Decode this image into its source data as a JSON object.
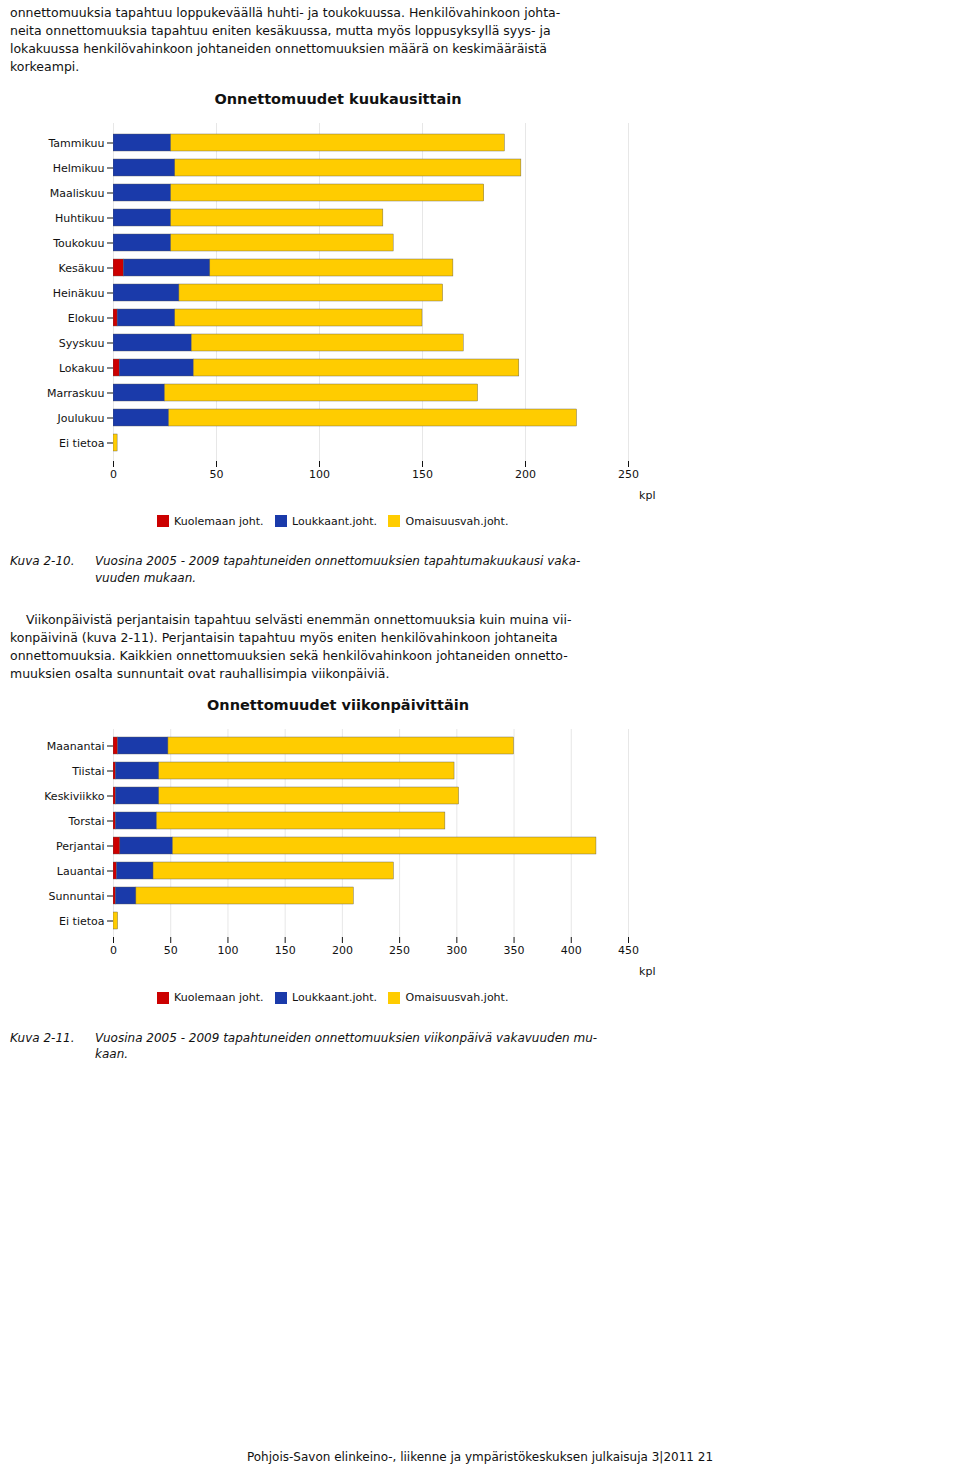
{
  "intro_text": "onnettomuuksia tapahtuu loppukeväällä huhti- ja toukokuussa. Henkilövahinkoon johta-\nneita onnettomuuksia tapahtuu eniten kesäkuussa, mutta myös loppusyksyllä syys- ja\nlokakuussa henkilövahinkoon johtaneiden onnettomuuksien määrä on keskimääräistä\nkorkeampi.",
  "middle_text": "    Viikonpäivistä perjantaisin tapahtuu selvästi enemmän onnettomuuksia kuin muina vii-\nkonpäivinä (kuva 2-11). Perjantaisin tapahtuu myös eniten henkilövahinkoon johtaneita\nonnettomuuksia. Kaikkien onnettomuuksien sekä henkilövahinkoon johtaneiden onnetto-\nmuuksien osalta sunnuntait ovat rauhallisimpia viikonpäiviä.",
  "footer": "Pohjois-Savon elinkeino-, liikenne ja ympäristökeskuksen julkaisuja 3|2011    21",
  "chart_data": [
    {
      "type": "bar",
      "orientation": "horizontal",
      "stacked": true,
      "grid": true,
      "title": "Onnettomuudet kuukausittain",
      "categories": [
        "Tammikuu",
        "Helmikuu",
        "Maaliskuu",
        "Huhtikuu",
        "Toukokuu",
        "Kesäkuu",
        "Heinäkuu",
        "Elokuu",
        "Syyskuu",
        "Lokakuu",
        "Marraskuu",
        "Joulukuu",
        "Ei tietoa"
      ],
      "series": [
        {
          "name": "Kuolemaan joht.",
          "color": "#cc0000",
          "values": [
            0,
            0,
            0,
            0,
            0,
            5,
            0,
            2,
            0,
            3,
            0,
            0,
            0
          ]
        },
        {
          "name": "Loukkaant.joht.",
          "color": "#1a3aaa",
          "values": [
            28,
            30,
            28,
            28,
            28,
            42,
            32,
            28,
            38,
            36,
            25,
            27,
            0
          ]
        },
        {
          "name": "Omaisuusvah.joht.",
          "color": "#ffcc00",
          "values": [
            162,
            168,
            152,
            103,
            108,
            118,
            128,
            120,
            132,
            158,
            152,
            198,
            2
          ]
        }
      ],
      "xlim": [
        0,
        250
      ],
      "xticks": [
        0,
        50,
        100,
        150,
        200,
        250
      ],
      "xlabel": "kpl",
      "caption": [
        "Kuva 2-10.",
        "Vuosina 2005 - 2009 tapahtuneiden onnettomuuksien tapahtumakuukausi vaka-\nvuuden mukaan."
      ]
    },
    {
      "type": "bar",
      "orientation": "horizontal",
      "stacked": true,
      "grid": true,
      "title": "Onnettomuudet viikonpäivittäin",
      "categories": [
        "Maanantai",
        "Tiistai",
        "Keskiviikko",
        "Torstai",
        "Perjantai",
        "Lauantai",
        "Sunnuntai",
        "Ei tietoa"
      ],
      "series": [
        {
          "name": "Kuolemaan joht.",
          "color": "#cc0000",
          "values": [
            4,
            2,
            2,
            2,
            6,
            3,
            2,
            0
          ]
        },
        {
          "name": "Loukkaant.joht.",
          "color": "#1a3aaa",
          "values": [
            44,
            38,
            38,
            36,
            46,
            32,
            18,
            0
          ]
        },
        {
          "name": "Omaisuusvah.joht.",
          "color": "#ffcc00",
          "values": [
            302,
            258,
            262,
            252,
            370,
            210,
            190,
            4
          ]
        }
      ],
      "xlim": [
        0,
        450
      ],
      "xticks": [
        0,
        50,
        100,
        150,
        200,
        250,
        300,
        350,
        400,
        450
      ],
      "xlabel": "kpl",
      "caption": [
        "Kuva 2-11.",
        "Vuosina 2005 - 2009 tapahtuneiden onnettomuuksien viikonpäivä vakavuuden mu-\nkaan."
      ]
    }
  ]
}
